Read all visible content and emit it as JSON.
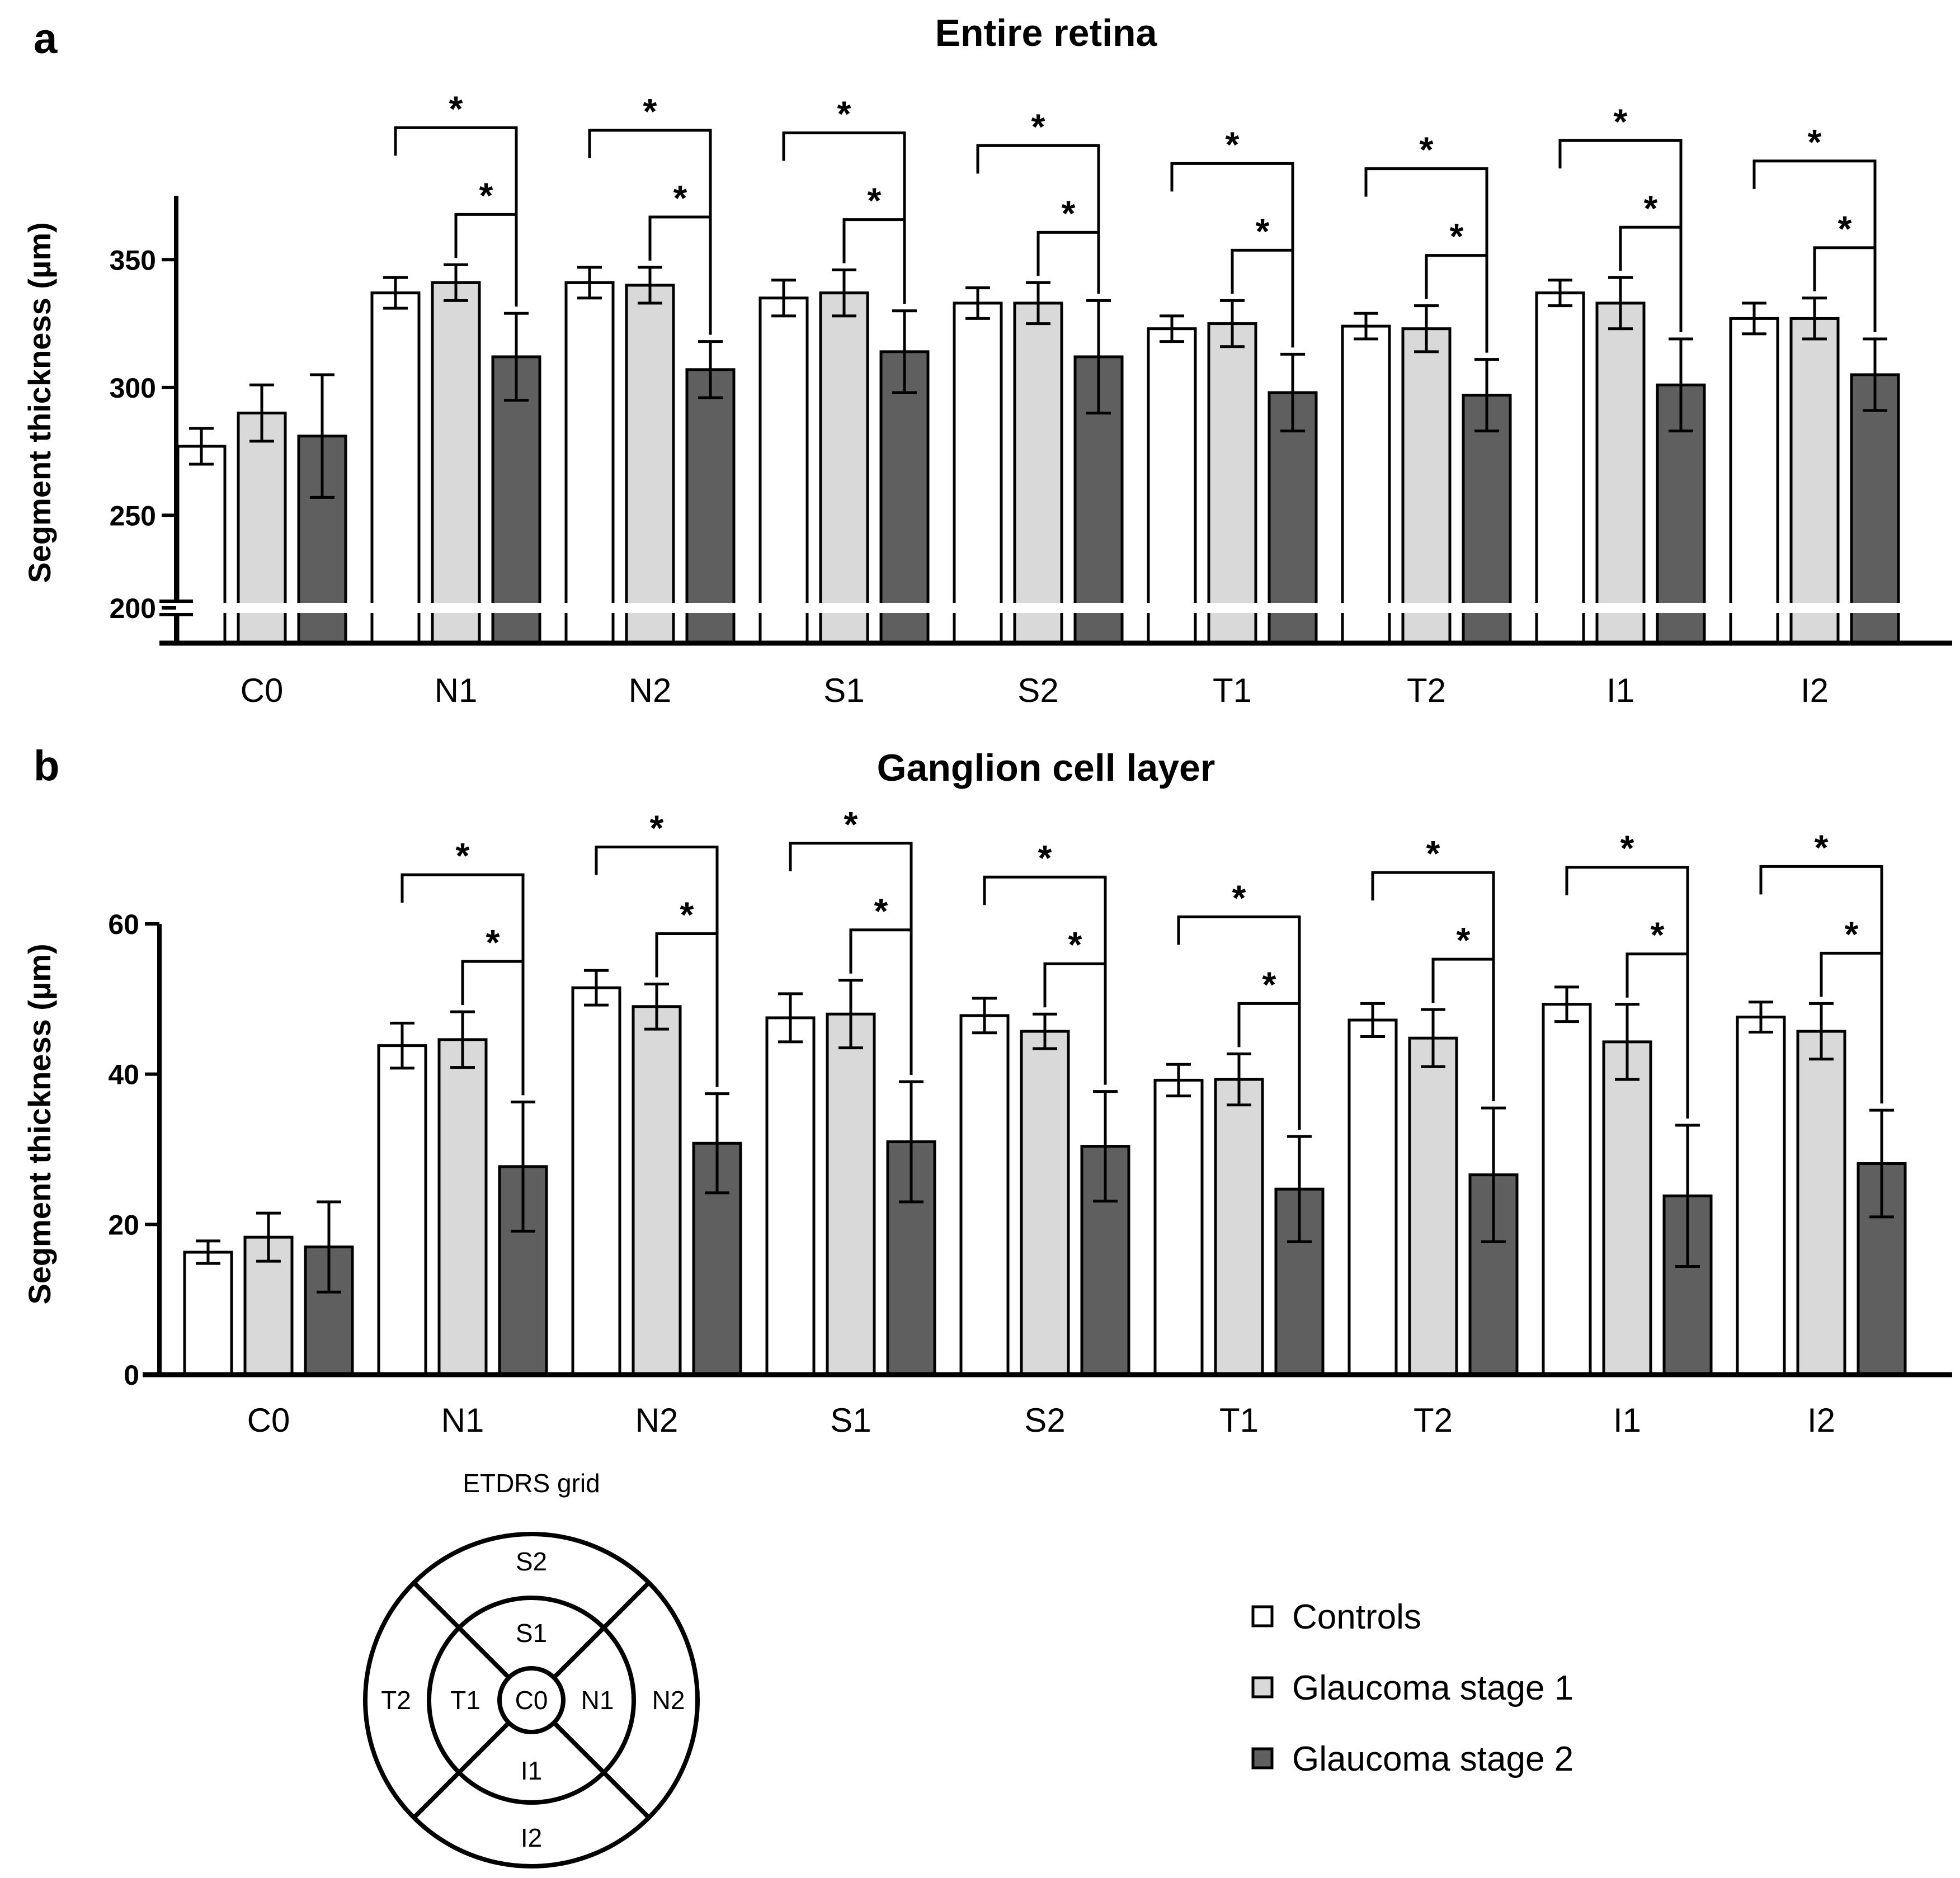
{
  "legend": {
    "items": [
      {
        "label": "Controls",
        "color": "#ffffff"
      },
      {
        "label": "Glaucoma stage 1",
        "color": "#d9d9d9"
      },
      {
        "label": "Glaucoma stage 2",
        "color": "#5f5f5f"
      }
    ]
  },
  "etdrs": {
    "title": "ETDRS grid",
    "labels": {
      "S2": "S2",
      "S1": "S1",
      "T2": "T2",
      "T1": "T1",
      "C0": "C0",
      "N1": "N1",
      "N2": "N2",
      "I1": "I1",
      "I2": "I2"
    }
  },
  "chart_data": [
    {
      "panel": "a",
      "type": "bar",
      "title": "Entire retina",
      "xlabel": "",
      "ylabel": "Segment thickness (µm)",
      "ylim": [
        200,
        375
      ],
      "axis_break_at": 200,
      "yticks": [
        200,
        250,
        300,
        350
      ],
      "categories": [
        "C0",
        "N1",
        "N2",
        "S1",
        "S2",
        "T1",
        "T2",
        "I1",
        "I2"
      ],
      "series": [
        {
          "name": "Controls",
          "values": [
            277,
            337,
            341,
            335,
            333,
            323,
            324,
            337,
            327
          ],
          "errors": [
            7,
            6,
            6,
            7,
            6,
            5,
            5,
            5,
            6
          ]
        },
        {
          "name": "Glaucoma stage 1",
          "values": [
            290,
            341,
            340,
            337,
            333,
            325,
            323,
            333,
            327
          ],
          "errors": [
            11,
            7,
            7,
            9,
            8,
            9,
            9,
            10,
            8
          ]
        },
        {
          "name": "Glaucoma stage 2",
          "values": [
            281,
            312,
            307,
            314,
            312,
            298,
            297,
            301,
            305
          ],
          "errors": [
            24,
            17,
            11,
            16,
            22,
            15,
            14,
            18,
            14
          ]
        }
      ],
      "significance": {
        "marker": "*",
        "pairs": [
          "Controls vs Glaucoma stage 2",
          "Glaucoma stage 1 vs Glaucoma stage 2"
        ],
        "categories": [
          "N1",
          "N2",
          "S1",
          "S2",
          "T1",
          "T2",
          "I1",
          "I2"
        ]
      }
    },
    {
      "panel": "b",
      "type": "bar",
      "title": "Ganglion cell layer",
      "xlabel": "",
      "ylabel": "Segment thickness (µm)",
      "ylim": [
        0,
        60
      ],
      "yticks": [
        0,
        20,
        40,
        60
      ],
      "categories": [
        "C0",
        "N1",
        "N2",
        "S1",
        "S2",
        "T1",
        "T2",
        "I1",
        "I2"
      ],
      "series": [
        {
          "name": "Controls",
          "values": [
            16.3,
            43.8,
            51.5,
            47.5,
            47.8,
            39.2,
            47.2,
            49.3,
            47.6
          ],
          "errors": [
            1.5,
            3.0,
            2.3,
            3.2,
            2.3,
            2.1,
            2.2,
            2.3,
            2.0
          ]
        },
        {
          "name": "Glaucoma stage 1",
          "values": [
            18.3,
            44.6,
            49.0,
            48.0,
            45.7,
            39.3,
            44.8,
            44.3,
            45.7
          ],
          "errors": [
            3.2,
            3.7,
            3.0,
            4.5,
            2.3,
            3.4,
            3.8,
            5.0,
            3.7
          ]
        },
        {
          "name": "Glaucoma stage 2",
          "values": [
            17.0,
            27.7,
            30.8,
            31.0,
            30.4,
            24.7,
            26.6,
            23.8,
            28.1
          ],
          "errors": [
            6.0,
            8.6,
            6.6,
            8.0,
            7.3,
            7.0,
            8.9,
            9.4,
            7.1
          ]
        }
      ],
      "significance": {
        "marker": "*",
        "pairs": [
          "Controls vs Glaucoma stage 2",
          "Glaucoma stage 1 vs Glaucoma stage 2"
        ],
        "categories": [
          "N1",
          "N2",
          "S1",
          "S2",
          "T1",
          "T2",
          "I1",
          "I2"
        ]
      }
    }
  ]
}
